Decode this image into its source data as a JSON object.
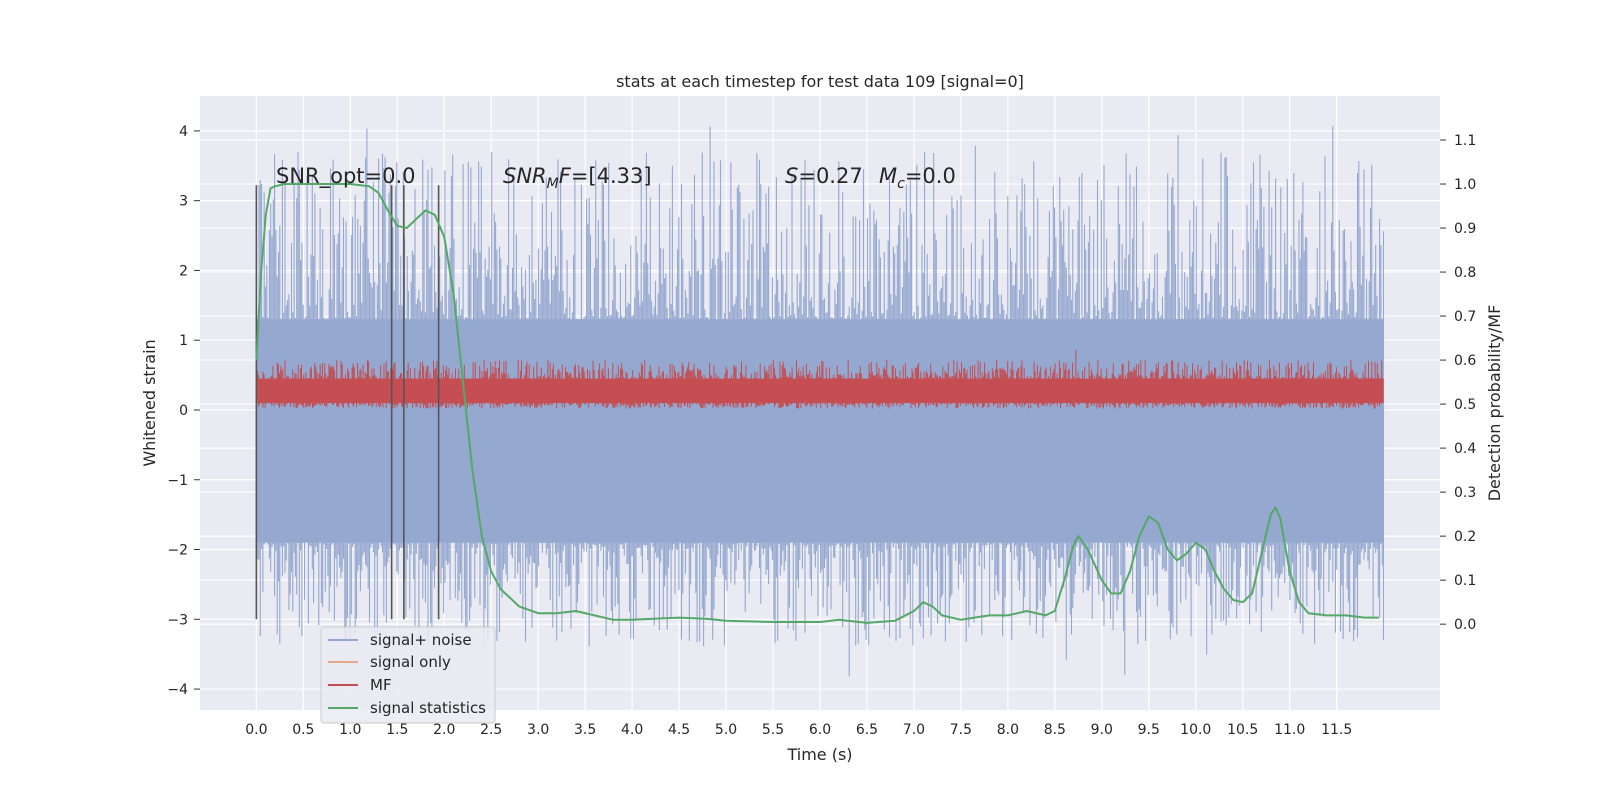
{
  "chart_data": {
    "type": "line",
    "title": "stats at each timestep for test data 109 [signal=0]",
    "xlabel": "Time (s)",
    "ylabel": "Whitened strain",
    "ylabel_right": "Detection probability/MF",
    "xlim": [
      -0.6,
      12.6
    ],
    "ylim": [
      -4.3,
      4.5
    ],
    "ylim_right": [
      -0.195,
      1.2
    ],
    "x_ticks": [
      "0.0",
      "0.5",
      "1.0",
      "1.5",
      "2.0",
      "2.5",
      "3.0",
      "3.5",
      "4.0",
      "4.5",
      "5.0",
      "5.5",
      "6.0",
      "6.5",
      "7.0",
      "7.5",
      "8.0",
      "8.5",
      "9.0",
      "9.5",
      "10.0",
      "10.5",
      "11.0",
      "11.5"
    ],
    "y_ticks": [
      "−4",
      "−3",
      "−2",
      "−1",
      "0",
      "1",
      "2",
      "3",
      "4"
    ],
    "y_right_ticks": [
      "0.0",
      "0.1",
      "0.2",
      "0.3",
      "0.4",
      "0.5",
      "0.6",
      "0.7",
      "0.8",
      "0.9",
      "1.0",
      "1.1"
    ],
    "grid": true,
    "legend_position": "lower-left",
    "legend": [
      {
        "label": "signal+ noise",
        "color": "#95a8d0"
      },
      {
        "label": "signal only",
        "color": "#e6a68c"
      },
      {
        "label": "MF",
        "color": "#c44e52"
      },
      {
        "label": "signal statistics",
        "color": "#55a868"
      }
    ],
    "annotations": {
      "snr_opt": "SNR_opt=0.0",
      "snr_mf_var": "SNR",
      "snr_mf_sub": "M",
      "snr_mf_var2": "F",
      "snr_mf_value": "=[4.33]",
      "s_var": "S",
      "s_value": "=0.27",
      "mc_var": "M",
      "mc_sub": "c",
      "mc_value": "=0.0"
    },
    "vertical_markers_x": [
      0.0,
      1.44,
      1.57,
      1.94
    ],
    "series": [
      {
        "name": "signal+ noise",
        "axis": "left",
        "x_range": [
          0.0,
          12.0
        ],
        "band_low": -1.9,
        "band_high": 1.3,
        "extreme_min": -3.88,
        "extreme_max": 4.1
      },
      {
        "name": "MF",
        "axis": "left",
        "x_range": [
          0.0,
          12.0
        ],
        "band_low": 0.02,
        "band_high": 0.58,
        "extreme_max": 0.98
      },
      {
        "name": "signal statistics",
        "axis": "right",
        "x": [
          0.0,
          0.05,
          0.1,
          0.15,
          0.2,
          0.3,
          0.5,
          0.8,
          1.0,
          1.2,
          1.3,
          1.4,
          1.5,
          1.6,
          1.7,
          1.8,
          1.9,
          2.0,
          2.1,
          2.2,
          2.3,
          2.4,
          2.5,
          2.6,
          2.8,
          3.0,
          3.2,
          3.4,
          3.6,
          3.8,
          4.0,
          4.2,
          4.5,
          4.8,
          5.0,
          5.5,
          6.0,
          6.2,
          6.5,
          6.8,
          7.0,
          7.1,
          7.2,
          7.3,
          7.5,
          7.8,
          8.0,
          8.2,
          8.4,
          8.5,
          8.6,
          8.7,
          8.75,
          8.85,
          9.0,
          9.1,
          9.2,
          9.3,
          9.4,
          9.5,
          9.6,
          9.7,
          9.8,
          9.9,
          10.0,
          10.1,
          10.2,
          10.3,
          10.4,
          10.5,
          10.6,
          10.7,
          10.8,
          10.85,
          10.9,
          11.0,
          11.1,
          11.2,
          11.4,
          11.6,
          11.8,
          11.95
        ],
        "y": [
          0.6,
          0.8,
          0.93,
          0.99,
          0.995,
          1.0,
          1.0,
          1.0,
          1.0,
          0.995,
          0.98,
          0.94,
          0.905,
          0.9,
          0.92,
          0.94,
          0.93,
          0.88,
          0.75,
          0.55,
          0.35,
          0.2,
          0.12,
          0.08,
          0.04,
          0.025,
          0.025,
          0.03,
          0.02,
          0.01,
          0.01,
          0.012,
          0.015,
          0.012,
          0.008,
          0.005,
          0.005,
          0.01,
          0.003,
          0.008,
          0.03,
          0.05,
          0.04,
          0.02,
          0.01,
          0.02,
          0.02,
          0.03,
          0.02,
          0.03,
          0.1,
          0.18,
          0.2,
          0.17,
          0.1,
          0.07,
          0.07,
          0.12,
          0.2,
          0.245,
          0.23,
          0.17,
          0.145,
          0.16,
          0.185,
          0.17,
          0.12,
          0.08,
          0.055,
          0.05,
          0.07,
          0.16,
          0.25,
          0.265,
          0.24,
          0.12,
          0.05,
          0.025,
          0.02,
          0.02,
          0.015,
          0.015
        ]
      }
    ]
  }
}
